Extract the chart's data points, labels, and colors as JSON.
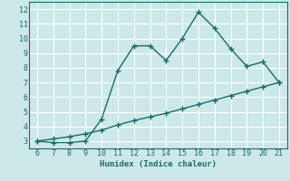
{
  "title": "",
  "xlabel": "Humidex (Indice chaleur)",
  "ylabel": "",
  "bg_color": "#cce8e8",
  "line_color": "#1a6b6b",
  "grid_color": "#ffffff",
  "x_upper": [
    6,
    7,
    8,
    9,
    10,
    11,
    12,
    13,
    14,
    15,
    16,
    17,
    18,
    19,
    20,
    21
  ],
  "y_upper": [
    3.0,
    2.9,
    2.9,
    3.0,
    4.5,
    7.8,
    9.5,
    9.5,
    8.5,
    10.0,
    11.8,
    10.7,
    9.3,
    8.1,
    8.4,
    7.0
  ],
  "x_lower": [
    6,
    7,
    8,
    9,
    10,
    11,
    12,
    13,
    14,
    15,
    16,
    17,
    18,
    19,
    20,
    21
  ],
  "y_lower": [
    3.0,
    3.15,
    3.3,
    3.5,
    3.75,
    4.1,
    4.4,
    4.65,
    4.9,
    5.2,
    5.5,
    5.8,
    6.1,
    6.4,
    6.7,
    7.0
  ],
  "xlim": [
    5.5,
    21.5
  ],
  "ylim": [
    2.5,
    12.5
  ],
  "yticks": [
    3,
    4,
    5,
    6,
    7,
    8,
    9,
    10,
    11,
    12
  ],
  "xticks": [
    6,
    7,
    8,
    9,
    10,
    11,
    12,
    13,
    14,
    15,
    16,
    17,
    18,
    19,
    20,
    21
  ],
  "marker": "+",
  "markersize": 4,
  "linewidth": 1.0
}
